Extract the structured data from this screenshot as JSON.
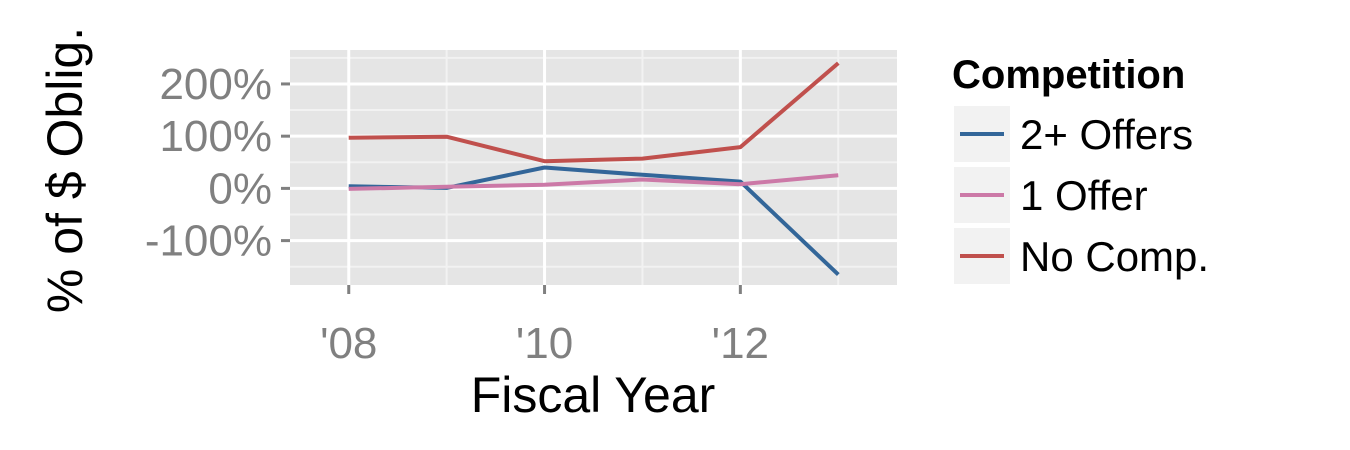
{
  "chart_data": {
    "type": "line",
    "xlabel": "Fiscal Year",
    "ylabel": "% of $ Oblig.",
    "x": [
      2008,
      2009,
      2010,
      2011,
      2012,
      2013
    ],
    "x_ticks": [
      {
        "value": 2008,
        "label": "'08"
      },
      {
        "value": 2010,
        "label": "'10"
      },
      {
        "value": 2012,
        "label": "'12"
      }
    ],
    "xlim": [
      2007.4,
      2013.6
    ],
    "y_ticks": [
      {
        "value": 200,
        "label": "200%"
      },
      {
        "value": 100,
        "label": "100%"
      },
      {
        "value": 0,
        "label": "0%"
      },
      {
        "value": -100,
        "label": "-100%"
      }
    ],
    "ylim": [
      -185,
      265
    ],
    "grid": true,
    "legend": {
      "title": "Competition",
      "position": "right"
    },
    "series": [
      {
        "name": "2+ Offers",
        "color": "#336699",
        "values": [
          4,
          1,
          40,
          26,
          13,
          -165
        ]
      },
      {
        "name": "1 Offer",
        "color": "#CC79A7",
        "values": [
          -1,
          3,
          7,
          17,
          8,
          25
        ]
      },
      {
        "name": "No Comp.",
        "color": "#C0504D",
        "values": [
          97,
          99,
          52,
          57,
          79,
          240
        ]
      }
    ]
  }
}
